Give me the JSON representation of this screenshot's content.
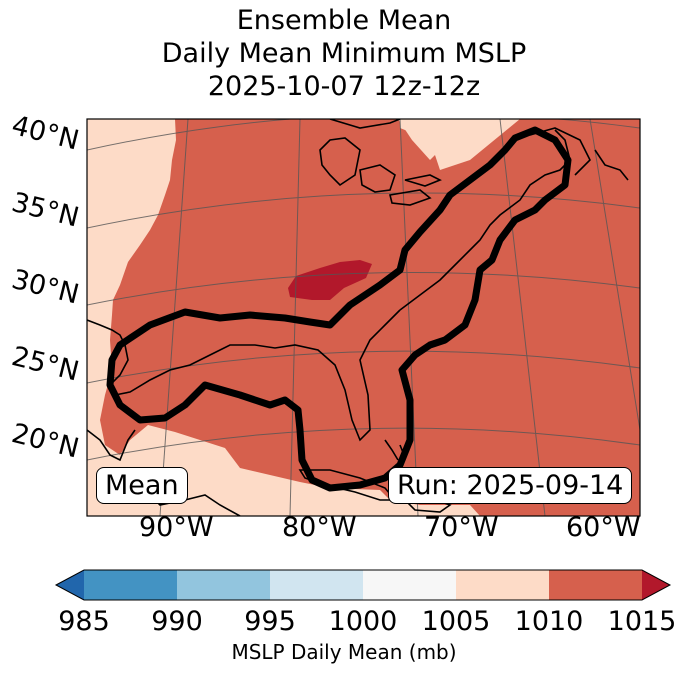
{
  "title": {
    "line1": "Ensemble Mean",
    "line2": "Daily Mean Minimum MSLP",
    "line3": "2025-10-07 12z-12z"
  },
  "lat_labels": [
    "40°N",
    "35°N",
    "30°N",
    "25°N",
    "20°N"
  ],
  "lon_labels": [
    "90°W",
    "80°W",
    "70°W",
    "60°W"
  ],
  "mean_box": "Mean",
  "run_box": "Run: 2025-09-14",
  "colorbar": {
    "ticks": [
      "985",
      "990",
      "995",
      "1000",
      "1005",
      "1010",
      "1015"
    ],
    "label": "MSLP Daily Mean (mb)",
    "colors": [
      "#2166ac",
      "#4393c3",
      "#92c5de",
      "#d1e5f0",
      "#f7f7f7",
      "#fddbc7",
      "#d6604d",
      "#b2182b"
    ]
  },
  "fill_colors": {
    "light": "#fddbc7",
    "mid": "#d6604d",
    "dark": "#b2182b"
  }
}
